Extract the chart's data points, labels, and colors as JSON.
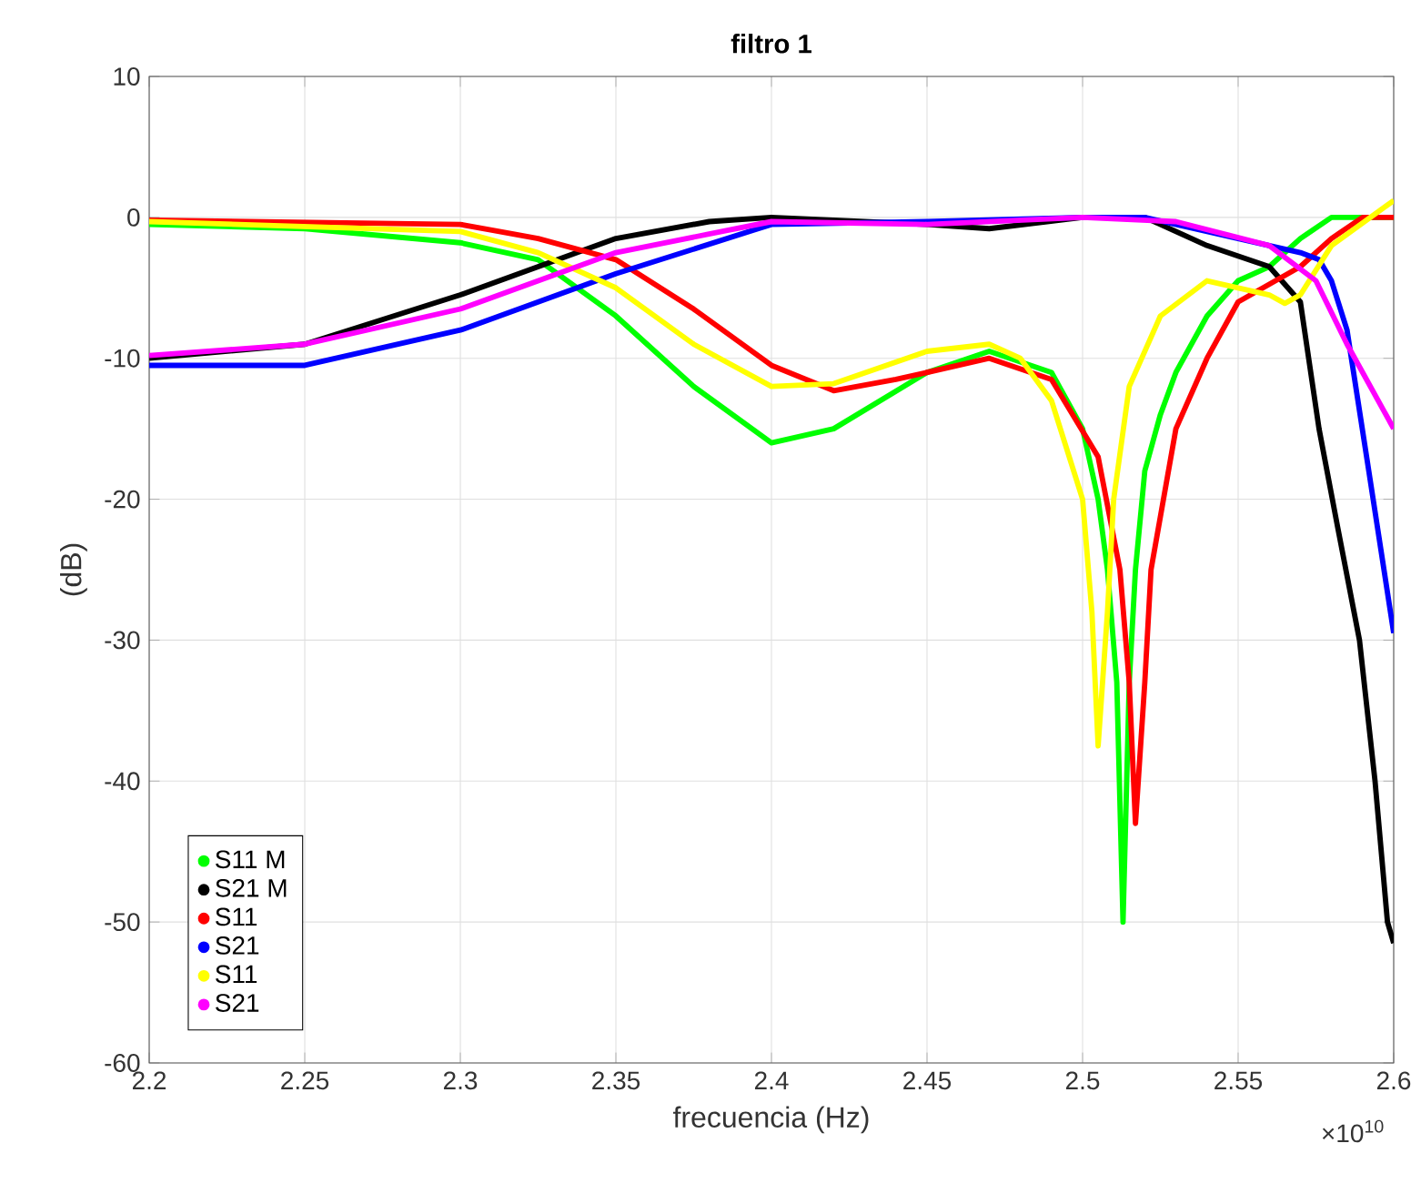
{
  "chart_data": {
    "type": "line",
    "title": "filtro 1",
    "xlabel": "frecuencia (Hz)",
    "ylabel": "(dB)",
    "annotations": [
      "×10$^{10}$"
    ],
    "xlim": [
      2.2,
      2.6
    ],
    "ylim": [
      -60,
      10
    ],
    "xticks": [
      2.2,
      2.25,
      2.3,
      2.35,
      2.4,
      2.45,
      2.5,
      2.55,
      2.6
    ],
    "yticks": [
      -60,
      -50,
      -40,
      -30,
      -20,
      -10,
      0,
      10
    ],
    "grid": true,
    "legend": "bottom left",
    "series": [
      {
        "name": "S11 M",
        "color": "#00ff00",
        "x": [
          2.2,
          2.25,
          2.3,
          2.325,
          2.35,
          2.375,
          2.4,
          2.42,
          2.45,
          2.47,
          2.49,
          2.5,
          2.505,
          2.508,
          2.511,
          2.513,
          2.515,
          2.517,
          2.52,
          2.525,
          2.53,
          2.54,
          2.55,
          2.56,
          2.57,
          2.58,
          2.6
        ],
        "values": [
          -0.5,
          -0.8,
          -1.8,
          -3,
          -7,
          -12,
          -16,
          -15,
          -11,
          -9.5,
          -11,
          -15,
          -20,
          -25,
          -33,
          -50,
          -33,
          -25,
          -18,
          -14,
          -11,
          -7,
          -4.5,
          -3.5,
          -1.5,
          0,
          0
        ]
      },
      {
        "name": "S21 M",
        "color": "#000000",
        "x": [
          2.2,
          2.25,
          2.3,
          2.35,
          2.38,
          2.4,
          2.45,
          2.47,
          2.5,
          2.52,
          2.54,
          2.56,
          2.57,
          2.576,
          2.582,
          2.589,
          2.594,
          2.598,
          2.6
        ],
        "values": [
          -10,
          -9,
          -5.5,
          -1.5,
          -0.3,
          0,
          -0.5,
          -0.8,
          0,
          0,
          -2,
          -3.5,
          -6,
          -15,
          -22,
          -30,
          -40,
          -50,
          -51.5
        ]
      },
      {
        "name": "S11",
        "color": "#ff0000",
        "x": [
          2.2,
          2.3,
          2.325,
          2.35,
          2.375,
          2.4,
          2.42,
          2.44,
          2.47,
          2.49,
          2.505,
          2.512,
          2.515,
          2.517,
          2.52,
          2.522,
          2.53,
          2.54,
          2.55,
          2.57,
          2.58,
          2.59,
          2.6
        ],
        "values": [
          -0.2,
          -0.5,
          -1.5,
          -3,
          -6.5,
          -10.5,
          -12.3,
          -11.5,
          -10,
          -11.5,
          -17,
          -25,
          -33,
          -43,
          -33,
          -25,
          -15,
          -10,
          -6,
          -3.5,
          -1.5,
          0,
          0
        ]
      },
      {
        "name": "S21",
        "color": "#0000ff",
        "x": [
          2.2,
          2.25,
          2.3,
          2.35,
          2.4,
          2.45,
          2.5,
          2.52,
          2.55,
          2.57,
          2.576,
          2.58,
          2.585,
          2.592,
          2.6
        ],
        "values": [
          -10.5,
          -10.5,
          -8,
          -4,
          -0.5,
          -0.3,
          0,
          0,
          -1.5,
          -2.5,
          -3,
          -4.5,
          -8,
          -18,
          -29.5
        ]
      },
      {
        "name": "S11",
        "color": "#ffff00",
        "x": [
          2.2,
          2.3,
          2.325,
          2.35,
          2.375,
          2.4,
          2.42,
          2.45,
          2.47,
          2.48,
          2.49,
          2.5,
          2.503,
          2.505,
          2.508,
          2.51,
          2.515,
          2.525,
          2.54,
          2.56,
          2.565,
          2.57,
          2.58,
          2.6
        ],
        "values": [
          -0.3,
          -1,
          -2.5,
          -5,
          -9,
          -12,
          -11.8,
          -9.5,
          -9,
          -10,
          -13,
          -20,
          -28,
          -37.5,
          -28,
          -20,
          -12,
          -7,
          -4.5,
          -5.5,
          -6.1,
          -5.5,
          -2,
          1.2
        ]
      },
      {
        "name": "S21",
        "color": "#ff00ff",
        "x": [
          2.2,
          2.25,
          2.3,
          2.35,
          2.4,
          2.45,
          2.5,
          2.53,
          2.56,
          2.575,
          2.585,
          2.6
        ],
        "values": [
          -9.8,
          -9,
          -6.5,
          -2.5,
          -0.3,
          -0.5,
          0,
          -0.3,
          -2,
          -4.5,
          -9,
          -15
        ]
      }
    ]
  }
}
